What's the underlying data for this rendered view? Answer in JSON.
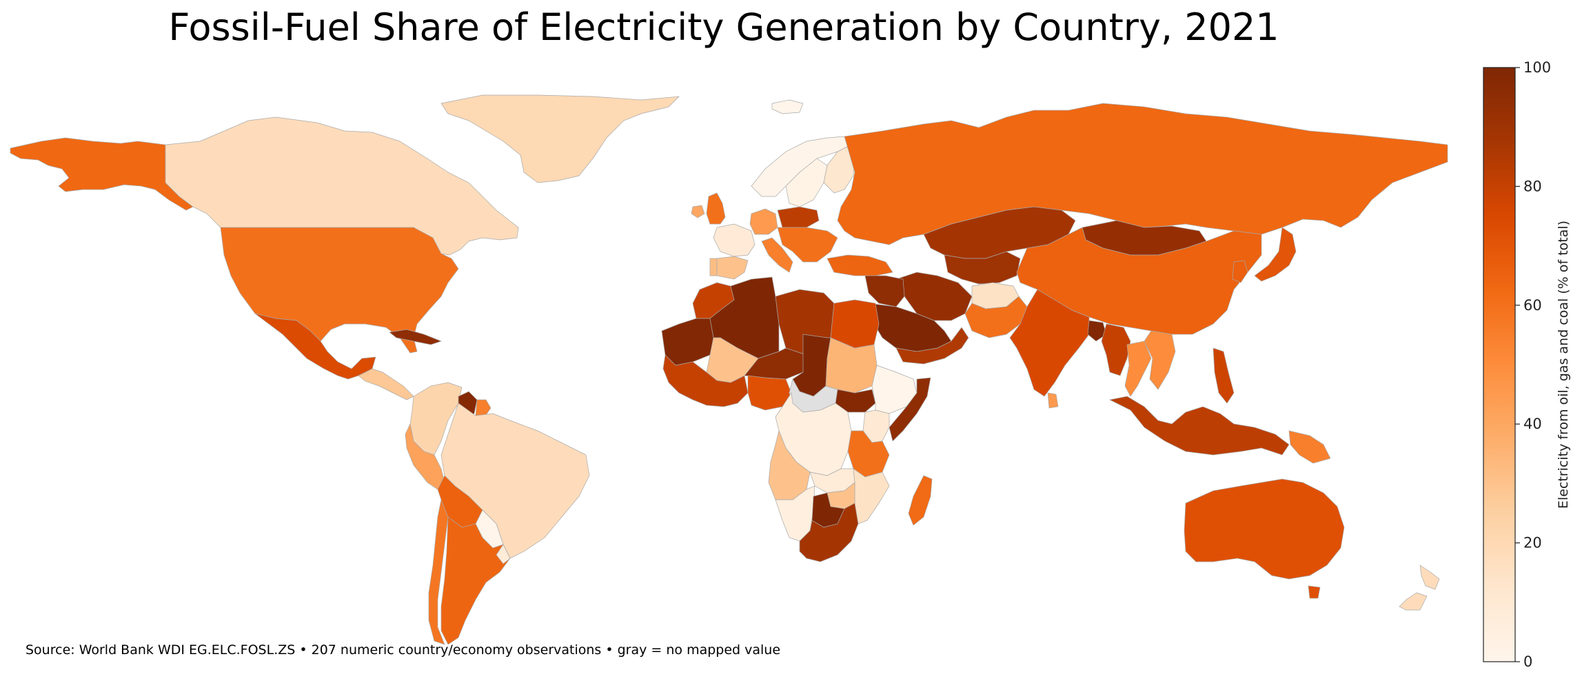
{
  "title": "Fossil-Fuel Share of Electricity Generation by Country, 2021",
  "source_note": "Source: World Bank WDI EG.ELC.FOSL.ZS  •  207 numeric country/economy observations  •  gray = no mapped value",
  "colorbar": {
    "label": "Electricity from oil, gas and coal (% of total)",
    "min": 0,
    "max": 100,
    "ticks": [
      "0",
      "20",
      "40",
      "60",
      "80",
      "100"
    ],
    "colormap": [
      "#fff5eb",
      "#fee6ce",
      "#fdd0a2",
      "#fdae6b",
      "#fd8d3c",
      "#f16913",
      "#d94801",
      "#a63603",
      "#7f2704"
    ]
  },
  "colors": {
    "no_data": "#e0e0e0",
    "border": "#a8a8a8"
  },
  "regions": [
    {
      "name": "Alaska (United States)",
      "value": 63
    },
    {
      "name": "Canada",
      "value": 18
    },
    {
      "name": "Greenland",
      "value": 20
    },
    {
      "name": "United States",
      "value": 60
    },
    {
      "name": "Mexico",
      "value": 74
    },
    {
      "name": "Cuba",
      "value": 95
    },
    {
      "name": "Central America",
      "value": 28
    },
    {
      "name": "Venezuela / Colombia / Ecuador",
      "value": 22
    },
    {
      "name": "Guyana",
      "value": 98
    },
    {
      "name": "Suriname",
      "value": 55
    },
    {
      "name": "Brazil",
      "value": 18
    },
    {
      "name": "Peru",
      "value": 42
    },
    {
      "name": "Bolivia",
      "value": 65
    },
    {
      "name": "Paraguay",
      "value": 0
    },
    {
      "name": "Chile",
      "value": 58
    },
    {
      "name": "Argentina",
      "value": 64
    },
    {
      "name": "Uruguay",
      "value": 8
    },
    {
      "name": "Iceland",
      "value": 0
    },
    {
      "name": "Norway",
      "value": 1
    },
    {
      "name": "Sweden",
      "value": 2
    },
    {
      "name": "Finland",
      "value": 12
    },
    {
      "name": "United Kingdom",
      "value": 40
    },
    {
      "name": "Ireland",
      "value": 60
    },
    {
      "name": "France",
      "value": 9
    },
    {
      "name": "Spain",
      "value": 32
    },
    {
      "name": "Portugal",
      "value": 30
    },
    {
      "name": "Germany",
      "value": 45
    },
    {
      "name": "Poland",
      "value": 82
    },
    {
      "name": "Italy",
      "value": 55
    },
    {
      "name": "Balkans",
      "value": 60
    },
    {
      "name": "Turkey",
      "value": 64
    },
    {
      "name": "Russia",
      "value": 63
    },
    {
      "name": "Kazakhstan",
      "value": 88
    },
    {
      "name": "Central Asia",
      "value": 90
    },
    {
      "name": "Mongolia",
      "value": 93
    },
    {
      "name": "China",
      "value": 65
    },
    {
      "name": "Korea",
      "value": 66
    },
    {
      "name": "Japan",
      "value": 70
    },
    {
      "name": "Iran",
      "value": 93
    },
    {
      "name": "Iraq / Syria",
      "value": 95
    },
    {
      "name": "Saudi Arabia",
      "value": 100
    },
    {
      "name": "Yemen / Oman",
      "value": 85
    },
    {
      "name": "Afghanistan",
      "value": 15
    },
    {
      "name": "Pakistan",
      "value": 60
    },
    {
      "name": "India",
      "value": 75
    },
    {
      "name": "Bangladesh",
      "value": 99
    },
    {
      "name": "Myanmar",
      "value": 45
    },
    {
      "name": "Thailand",
      "value": 80
    },
    {
      "name": "Vietnam",
      "value": 50
    },
    {
      "name": "Sri Lanka",
      "value": 50
    },
    {
      "name": "Philippines",
      "value": 78
    },
    {
      "name": "Indonesia",
      "value": 82
    },
    {
      "name": "Papua New Guinea",
      "value": 55
    },
    {
      "name": "Morocco",
      "value": 80
    },
    {
      "name": "Algeria",
      "value": 99
    },
    {
      "name": "Libya",
      "value": 100
    },
    {
      "name": "Egypt",
      "value": 88
    },
    {
      "name": "Mauritania",
      "value": 75
    },
    {
      "name": "Mali",
      "value": 30
    },
    {
      "name": "Niger",
      "value": 95
    },
    {
      "name": "Chad",
      "value": 100
    },
    {
      "name": "Sudan",
      "value": 35
    },
    {
      "name": "South Sudan",
      "value": 98
    },
    {
      "name": "Ethiopia",
      "value": 0
    },
    {
      "name": "Somalia",
      "value": 95
    },
    {
      "name": "Nigeria",
      "value": 80
    },
    {
      "name": "West Africa",
      "value": 72
    },
    {
      "name": "Central African Republic",
      "value": null
    },
    {
      "name": "Congo / DR Congo",
      "value": 5
    },
    {
      "name": "Kenya",
      "value": 10
    },
    {
      "name": "Tanzania",
      "value": 60
    },
    {
      "name": "Angola",
      "value": 30
    },
    {
      "name": "Zambia",
      "value": 8
    },
    {
      "name": "Mozambique",
      "value": 15
    },
    {
      "name": "Zimbabwe",
      "value": 30
    },
    {
      "name": "Namibia",
      "value": 5
    },
    {
      "name": "Botswana",
      "value": 100
    },
    {
      "name": "South Africa",
      "value": 88
    },
    {
      "name": "Madagascar",
      "value": 62
    },
    {
      "name": "Australia",
      "value": 72
    },
    {
      "name": "Tasmania (Australia)",
      "value": 72
    },
    {
      "name": "New Zealand",
      "value": 18
    }
  ]
}
